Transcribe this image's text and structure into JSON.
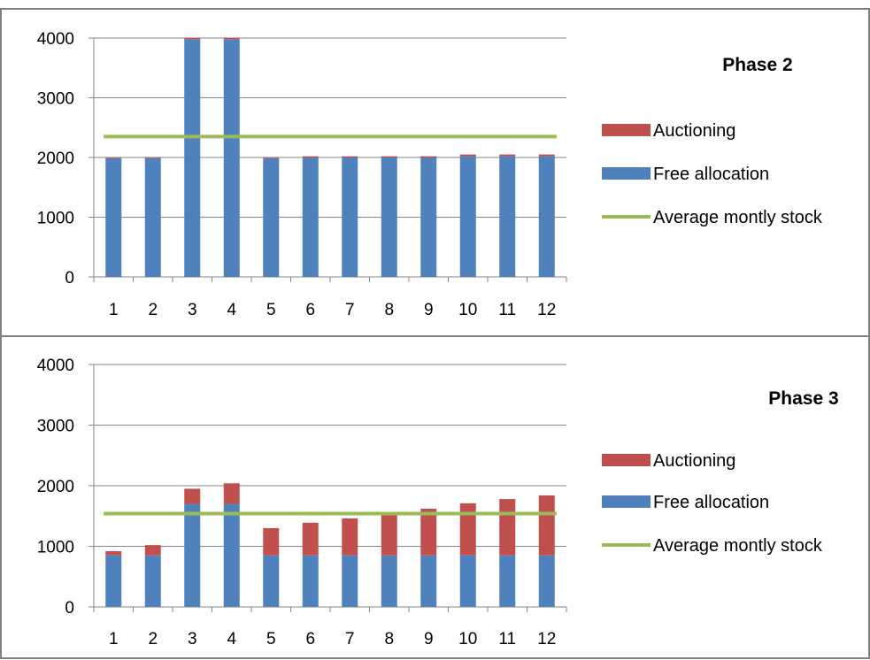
{
  "colors": {
    "free_allocation": "#4F81BD",
    "auctioning": "#C0504D",
    "average": "#9BBB59",
    "axis": "#868686",
    "frame": "#7F7F7F",
    "text": "#000000"
  },
  "chart_data": [
    {
      "type": "bar",
      "stacked": true,
      "title": "Phase 2",
      "xlabel": "",
      "ylabel": "",
      "ylim": [
        0,
        4000
      ],
      "y_ticks": [
        "0",
        "1000",
        "2000",
        "3000",
        "4000"
      ],
      "categories": [
        "1",
        "2",
        "3",
        "4",
        "5",
        "6",
        "7",
        "8",
        "9",
        "10",
        "11",
        "12"
      ],
      "grid": true,
      "legend_position": "right",
      "series": [
        {
          "name": "Free allocation",
          "kind": "bar",
          "color": "#4F81BD",
          "values": [
            1990,
            1990,
            3980,
            3980,
            1990,
            2000,
            2000,
            2000,
            2000,
            2020,
            2020,
            2020
          ]
        },
        {
          "name": "Auctioning",
          "kind": "bar",
          "color": "#C0504D",
          "values": [
            15,
            15,
            25,
            25,
            15,
            20,
            20,
            20,
            20,
            30,
            30,
            30
          ]
        },
        {
          "name": "Average montly stock",
          "kind": "line",
          "color": "#9BBB59",
          "values": [
            2350,
            2350,
            2350,
            2350,
            2350,
            2350,
            2350,
            2350,
            2350,
            2350,
            2350,
            2350
          ]
        }
      ]
    },
    {
      "type": "bar",
      "stacked": true,
      "title": "Phase 3",
      "xlabel": "",
      "ylabel": "",
      "ylim": [
        0,
        4000
      ],
      "y_ticks": [
        "0",
        "1000",
        "2000",
        "3000",
        "4000"
      ],
      "categories": [
        "1",
        "2",
        "3",
        "4",
        "5",
        "6",
        "7",
        "8",
        "9",
        "10",
        "11",
        "12"
      ],
      "grid": true,
      "legend_position": "right",
      "series": [
        {
          "name": "Free allocation",
          "kind": "bar",
          "color": "#4F81BD",
          "values": [
            850,
            850,
            1700,
            1700,
            850,
            850,
            850,
            850,
            850,
            850,
            850,
            850
          ]
        },
        {
          "name": "Auctioning",
          "kind": "bar",
          "color": "#C0504D",
          "values": [
            70,
            170,
            250,
            340,
            450,
            540,
            610,
            700,
            770,
            860,
            930,
            990
          ]
        },
        {
          "name": "Average montly stock",
          "kind": "line",
          "color": "#9BBB59",
          "values": [
            1540,
            1540,
            1540,
            1540,
            1540,
            1540,
            1540,
            1540,
            1540,
            1540,
            1540,
            1540
          ]
        }
      ]
    }
  ]
}
